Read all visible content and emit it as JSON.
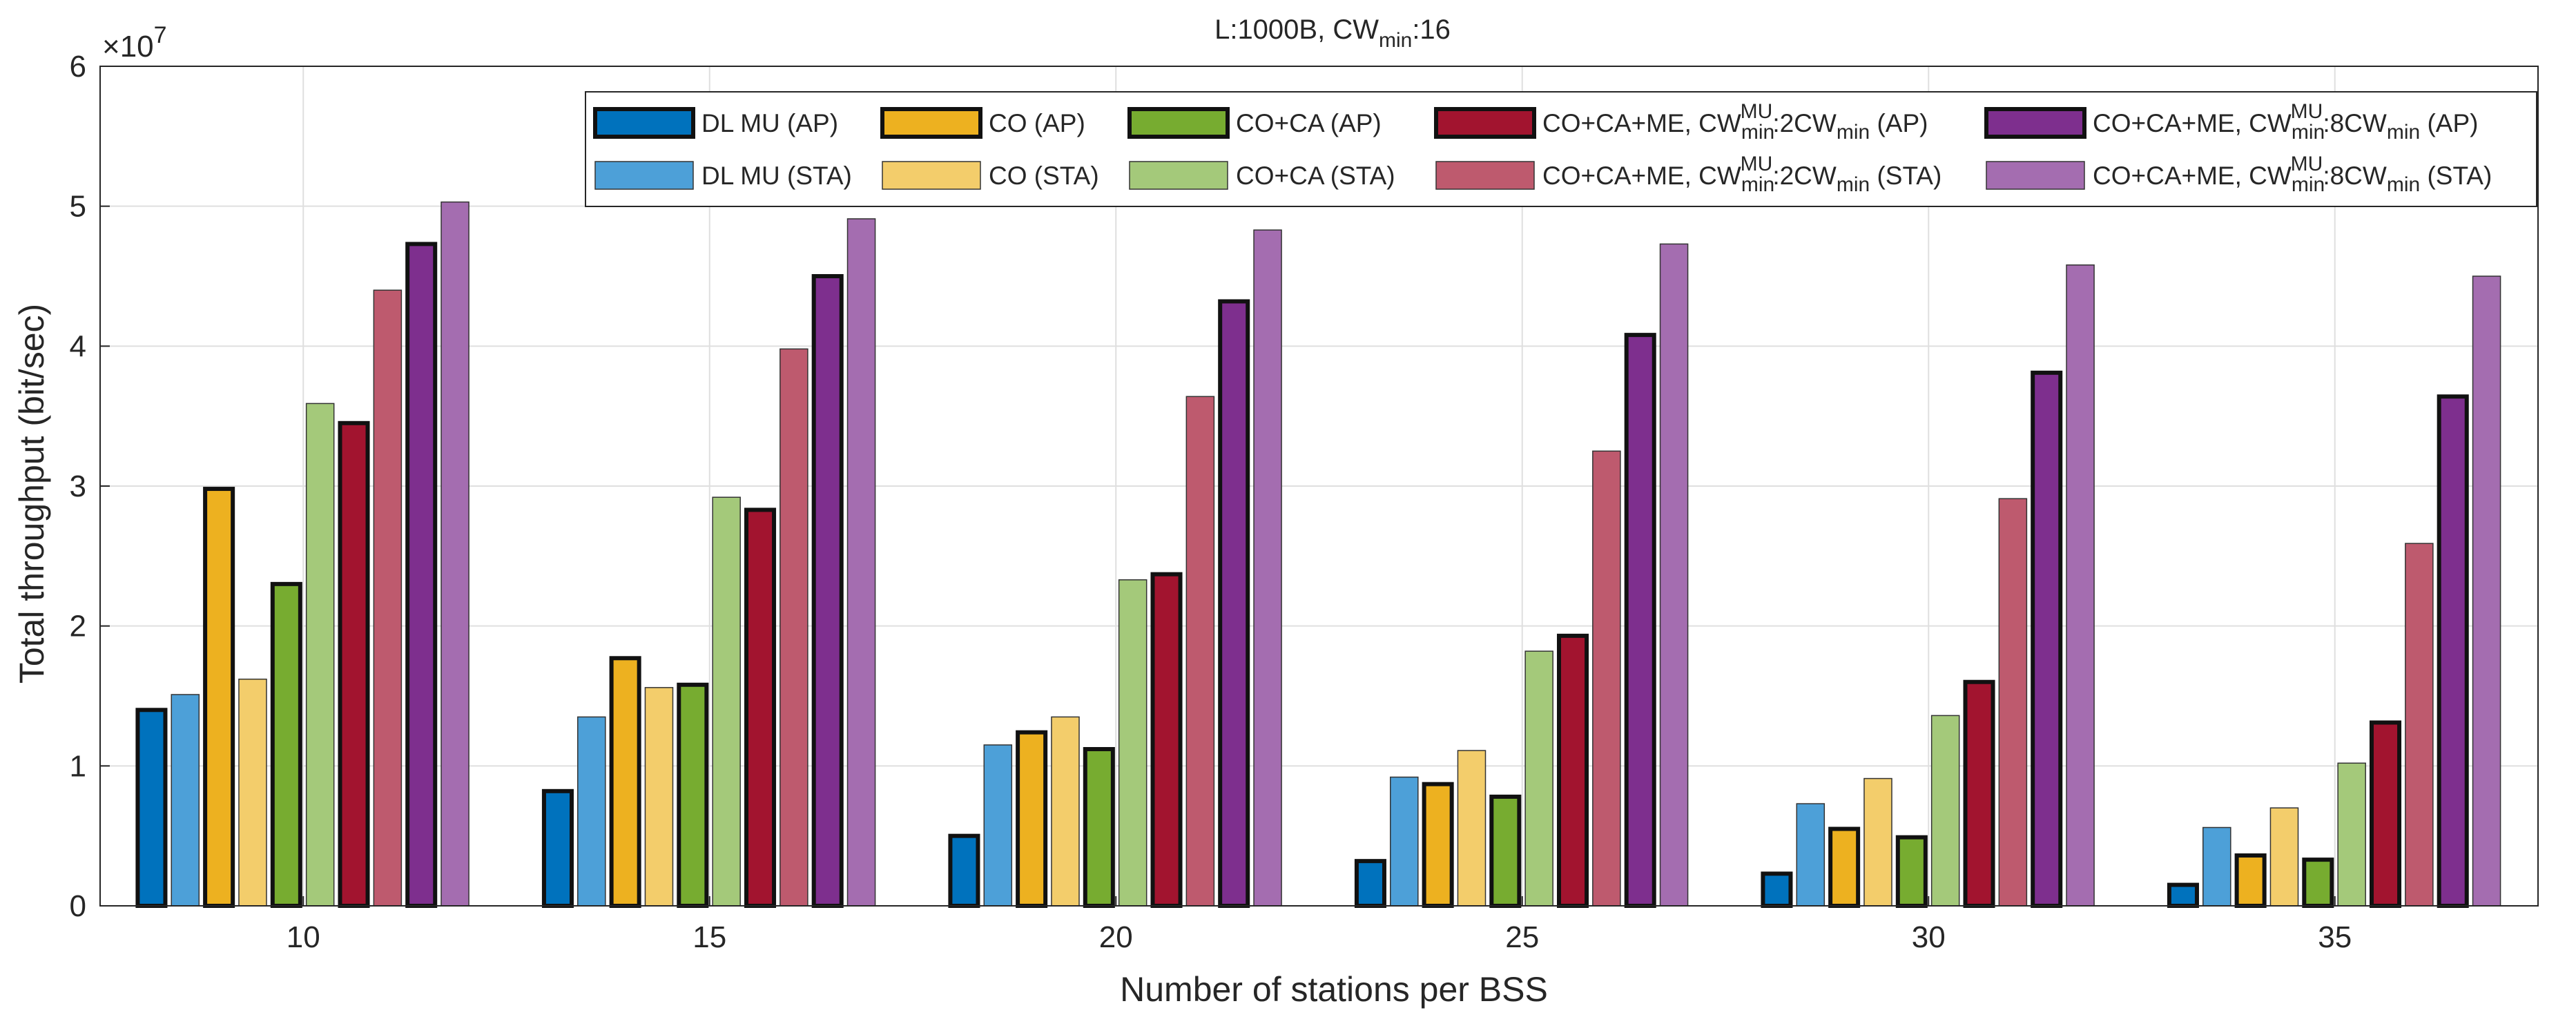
{
  "chart_data": {
    "type": "bar",
    "title": {
      "prefix": "L:1000B, CW",
      "sub": "min",
      "suffix": ":16"
    },
    "xlabel": "Number of stations per BSS",
    "ylabel": "Total throughput (bit/sec)",
    "y_multiplier": {
      "base": "×10",
      "exp": "7"
    },
    "ylim": [
      0,
      6
    ],
    "yticks": [
      "0",
      "1",
      "2",
      "3",
      "4",
      "5",
      "6"
    ],
    "grid": true,
    "legend_position": "top-right",
    "categories": [
      "10",
      "15",
      "20",
      "25",
      "30",
      "35"
    ],
    "series": [
      {
        "name": "DL MU (AP)",
        "parts": [
          [
            "DL MU (AP)",
            "n"
          ]
        ],
        "color": "#0072BD",
        "outlined": true,
        "values": [
          1.4,
          0.82,
          0.5,
          0.32,
          0.23,
          0.15
        ]
      },
      {
        "name": "DL MU (STA)",
        "parts": [
          [
            "DL MU (STA)",
            "n"
          ]
        ],
        "color": "#4DA0D8",
        "outlined": false,
        "values": [
          1.51,
          1.35,
          1.15,
          0.92,
          0.73,
          0.56
        ]
      },
      {
        "name": "CO (AP)",
        "parts": [
          [
            "CO (AP)",
            "n"
          ]
        ],
        "color": "#EDB120",
        "outlined": true,
        "values": [
          2.98,
          1.77,
          1.24,
          0.87,
          0.55,
          0.36
        ]
      },
      {
        "name": "CO (STA)",
        "parts": [
          [
            "CO (STA)",
            "n"
          ]
        ],
        "color": "#F3CD6B",
        "outlined": false,
        "values": [
          1.62,
          1.56,
          1.35,
          1.11,
          0.91,
          0.7
        ]
      },
      {
        "name": "CO+CA (AP)",
        "parts": [
          [
            "CO+CA (AP)",
            "n"
          ]
        ],
        "color": "#77AC30",
        "outlined": true,
        "values": [
          2.3,
          1.58,
          1.12,
          0.78,
          0.49,
          0.33
        ]
      },
      {
        "name": "CO+CA (STA)",
        "parts": [
          [
            "CO+CA (STA)",
            "n"
          ]
        ],
        "color": "#A4C97A",
        "outlined": false,
        "values": [
          3.59,
          2.92,
          2.33,
          1.82,
          1.36,
          1.02
        ]
      },
      {
        "name": "CO+CA+ME, CWminMU:2CWmin (AP)",
        "parts": [
          [
            "CO+CA+ME, CW",
            "n"
          ],
          [
            "min",
            "sub"
          ],
          [
            "MU",
            "sup"
          ],
          [
            ":2CW",
            "n"
          ],
          [
            "min",
            "sub"
          ],
          [
            " (AP)",
            "n"
          ]
        ],
        "color": "#A2142F",
        "outlined": true,
        "values": [
          3.45,
          2.83,
          2.37,
          1.93,
          1.6,
          1.31
        ]
      },
      {
        "name": "CO+CA+ME, CWminMU:2CWmin (STA)",
        "parts": [
          [
            "CO+CA+ME, CW",
            "n"
          ],
          [
            "min",
            "sub"
          ],
          [
            "MU",
            "sup"
          ],
          [
            ":2CW",
            "n"
          ],
          [
            "min",
            "sub"
          ],
          [
            " (STA)",
            "n"
          ]
        ],
        "color": "#BE5A6E",
        "outlined": false,
        "values": [
          4.4,
          3.98,
          3.64,
          3.25,
          2.91,
          2.59
        ]
      },
      {
        "name": "CO+CA+ME, CWminMU:8CWmin (AP)",
        "parts": [
          [
            "CO+CA+ME, CW",
            "n"
          ],
          [
            "min",
            "sub"
          ],
          [
            "MU",
            "sup"
          ],
          [
            ":8CW",
            "n"
          ],
          [
            "min",
            "sub"
          ],
          [
            " (AP)",
            "n"
          ]
        ],
        "color": "#7E2F8E",
        "outlined": true,
        "values": [
          4.73,
          4.5,
          4.32,
          4.08,
          3.81,
          3.64
        ]
      },
      {
        "name": "CO+CA+ME, CWminMU:8CWmin (STA)",
        "parts": [
          [
            "CO+CA+ME, CW",
            "n"
          ],
          [
            "min",
            "sub"
          ],
          [
            "MU",
            "sup"
          ],
          [
            ":8CW",
            "n"
          ],
          [
            "min",
            "sub"
          ],
          [
            " (STA)",
            "n"
          ]
        ],
        "color": "#A46DB0",
        "outlined": false,
        "values": [
          5.03,
          4.91,
          4.83,
          4.73,
          4.58,
          4.5
        ]
      }
    ]
  }
}
